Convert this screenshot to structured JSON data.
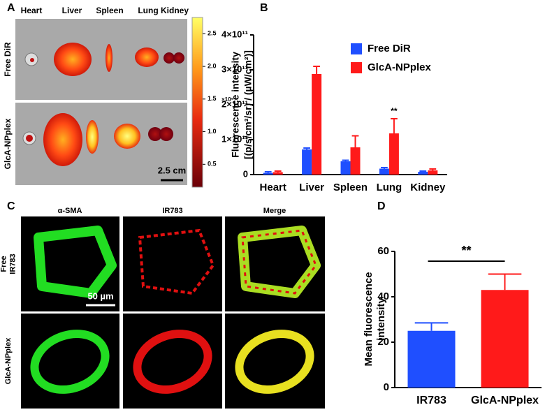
{
  "panel_labels": [
    "A",
    "B",
    "C",
    "D"
  ],
  "panel_a": {
    "organs": [
      "Heart",
      "Liver",
      "Spleen",
      "Lung",
      "Kidney"
    ],
    "rows": [
      "Free DiR",
      "GlcA-NPplex"
    ],
    "clim": [
      0.15,
      2.75
    ],
    "colorbar_ticks": [
      2.5,
      {
        "value": 2,
        "label": "2.0"
      },
      1.5,
      {
        "value": 1,
        "label": "1.0"
      },
      0.5
    ],
    "colorbar_unit": "×10⁹",
    "scale_bar": "2.5 cm"
  },
  "panel_c": {
    "columns": [
      "α-SMA",
      "IR783",
      "Merge"
    ],
    "rows": [
      [
        "Free",
        "IR783"
      ],
      [
        "GlcA-NPplex"
      ]
    ],
    "scale_bar": "50 µm"
  },
  "chart_data": [
    {
      "type": "bar",
      "ylabel": [
        "Fluorescence  intensity",
        "[(p/s/cm²/sr) / (µW/cm²)]"
      ],
      "categories": [
        "Heart",
        "Liver",
        "Spleen",
        "Lung",
        "Kidney"
      ],
      "series": [
        {
          "name": "Free DiR",
          "color": "#1f4fff",
          "values": [
            5000000000.0,
            72000000000.0,
            38000000000.0,
            17000000000.0,
            8000000000.0
          ],
          "errors": [
            3000000000.0,
            4000000000.0,
            3000000000.0,
            3000000000.0,
            2000000000.0
          ]
        },
        {
          "name": "GlcA-NPplex",
          "color": "#ff1a1a",
          "values": [
            7000000000.0,
            288000000000.0,
            78000000000.0,
            118000000000.0,
            12000000000.0
          ],
          "errors": [
            3000000000.0,
            22000000000.0,
            33000000000.0,
            42000000000.0,
            4000000000.0
          ]
        }
      ],
      "annotations": [
        {
          "text": "**",
          "category": 3,
          "series": 1
        }
      ],
      "ylim": [
        0,
        400000000000.0
      ],
      "yticks": [
        0,
        {
          "value": 100000000000.0,
          "label": "1×10¹¹"
        },
        {
          "value": 200000000000.0,
          "label": "2×10¹¹"
        },
        {
          "value": 300000000000.0,
          "label": "3×10¹¹"
        },
        {
          "value": 400000000000.0,
          "label": "4×10¹¹"
        }
      ],
      "legend": "upper right"
    },
    {
      "type": "bar",
      "ylabel": [
        "Mean fluorescence",
        "intensity"
      ],
      "categories": [
        "IR783",
        "GlcA-NPplex"
      ],
      "values": [
        25,
        43
      ],
      "errors": [
        3.5,
        7
      ],
      "colors": [
        "#1f4fff",
        "#ff1a1a"
      ],
      "annotations": [
        {
          "text": "**"
        }
      ],
      "ylim": [
        0,
        60
      ],
      "yticks": [
        0,
        20,
        40,
        60
      ]
    }
  ]
}
